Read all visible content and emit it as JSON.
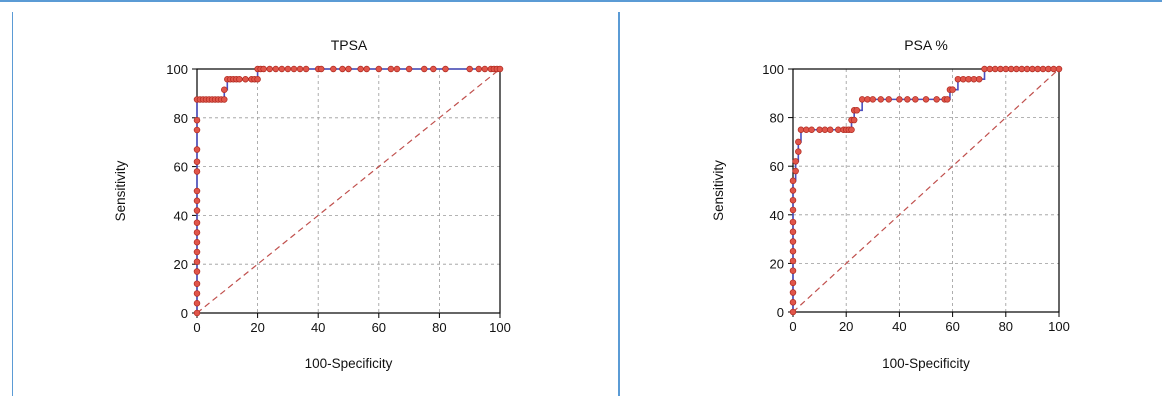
{
  "colors": {
    "frame": "#5b9bd5",
    "curve": "#4b4fc0",
    "marker_fill": "#e0554a",
    "marker_edge": "#b02a20",
    "diagonal": "#c0504d",
    "grid": "#9a9a9a"
  },
  "chart_data": [
    {
      "type": "line",
      "title": "TPSA",
      "xlabel": "100-Specificity",
      "ylabel": "Sensitivity",
      "xlim": [
        0,
        100
      ],
      "ylim": [
        0,
        100
      ],
      "xticks": [
        "0",
        "20",
        "40",
        "60",
        "80",
        "100"
      ],
      "yticks": [
        "0",
        "20",
        "40",
        "60",
        "80",
        "100"
      ],
      "grid": true,
      "series": [
        {
          "x": [
            0,
            0,
            0,
            0,
            0,
            0,
            0,
            0,
            0,
            0,
            0,
            0,
            0,
            0,
            0,
            0,
            0,
            0,
            0,
            1,
            2,
            3,
            4,
            5,
            6,
            7,
            8,
            9,
            9,
            10,
            11,
            12,
            13,
            14,
            16,
            18,
            19,
            20,
            20,
            21,
            22,
            24,
            26,
            28,
            30,
            32,
            34,
            36,
            40,
            41,
            45,
            48,
            50,
            54,
            56,
            60,
            64,
            66,
            70,
            75,
            78,
            82,
            90,
            93,
            95,
            97,
            98,
            99,
            100
          ],
          "y": [
            0,
            4,
            8,
            12,
            17,
            21,
            25,
            29,
            33,
            37,
            42,
            46,
            50,
            58,
            62,
            67,
            75,
            79,
            87.5,
            87.5,
            87.5,
            87.5,
            87.5,
            87.5,
            87.5,
            87.5,
            87.5,
            87.5,
            91.5,
            95.8,
            95.8,
            95.8,
            95.8,
            95.8,
            95.8,
            95.8,
            95.8,
            95.8,
            100,
            100,
            100,
            100,
            100,
            100,
            100,
            100,
            100,
            100,
            100,
            100,
            100,
            100,
            100,
            100,
            100,
            100,
            100,
            100,
            100,
            100,
            100,
            100,
            100,
            100,
            100,
            100,
            100,
            100,
            100
          ]
        }
      ],
      "reference_line": {
        "x": [
          0,
          100
        ],
        "y": [
          0,
          100
        ]
      }
    },
    {
      "type": "line",
      "title": "PSA %",
      "xlabel": "100-Specificity",
      "ylabel": "Sensitivity",
      "xlim": [
        0,
        100
      ],
      "ylim": [
        0,
        100
      ],
      "xticks": [
        "0",
        "20",
        "40",
        "60",
        "80",
        "100"
      ],
      "yticks": [
        "0",
        "20",
        "40",
        "60",
        "80",
        "100"
      ],
      "grid": true,
      "series": [
        {
          "x": [
            0,
            0,
            0,
            0,
            0,
            0,
            0,
            0,
            0,
            0,
            0,
            0,
            0,
            0,
            1,
            1,
            2,
            2,
            3,
            5,
            7,
            10,
            12,
            14,
            17,
            19,
            20,
            21,
            22,
            22,
            23,
            23,
            24,
            26,
            28,
            30,
            33,
            36,
            40,
            43,
            46,
            50,
            54,
            57,
            58,
            59,
            60,
            62,
            64,
            66,
            68,
            70,
            72,
            74,
            76,
            78,
            80,
            82,
            84,
            86,
            88,
            90,
            92,
            94,
            96,
            98,
            100
          ],
          "y": [
            0,
            4,
            8,
            12,
            17,
            21,
            25,
            29,
            33,
            37,
            42,
            46,
            50,
            54,
            58,
            62,
            66,
            70,
            75,
            75,
            75,
            75,
            75,
            75,
            75,
            75,
            75,
            75,
            75,
            79,
            79,
            83,
            83,
            87.5,
            87.5,
            87.5,
            87.5,
            87.5,
            87.5,
            87.5,
            87.5,
            87.5,
            87.5,
            87.5,
            87.5,
            91.5,
            91.5,
            95.8,
            95.8,
            95.8,
            95.8,
            95.8,
            100,
            100,
            100,
            100,
            100,
            100,
            100,
            100,
            100,
            100,
            100,
            100,
            100,
            100,
            100
          ]
        }
      ],
      "reference_line": {
        "x": [
          0,
          100
        ],
        "y": [
          0,
          100
        ]
      }
    }
  ]
}
